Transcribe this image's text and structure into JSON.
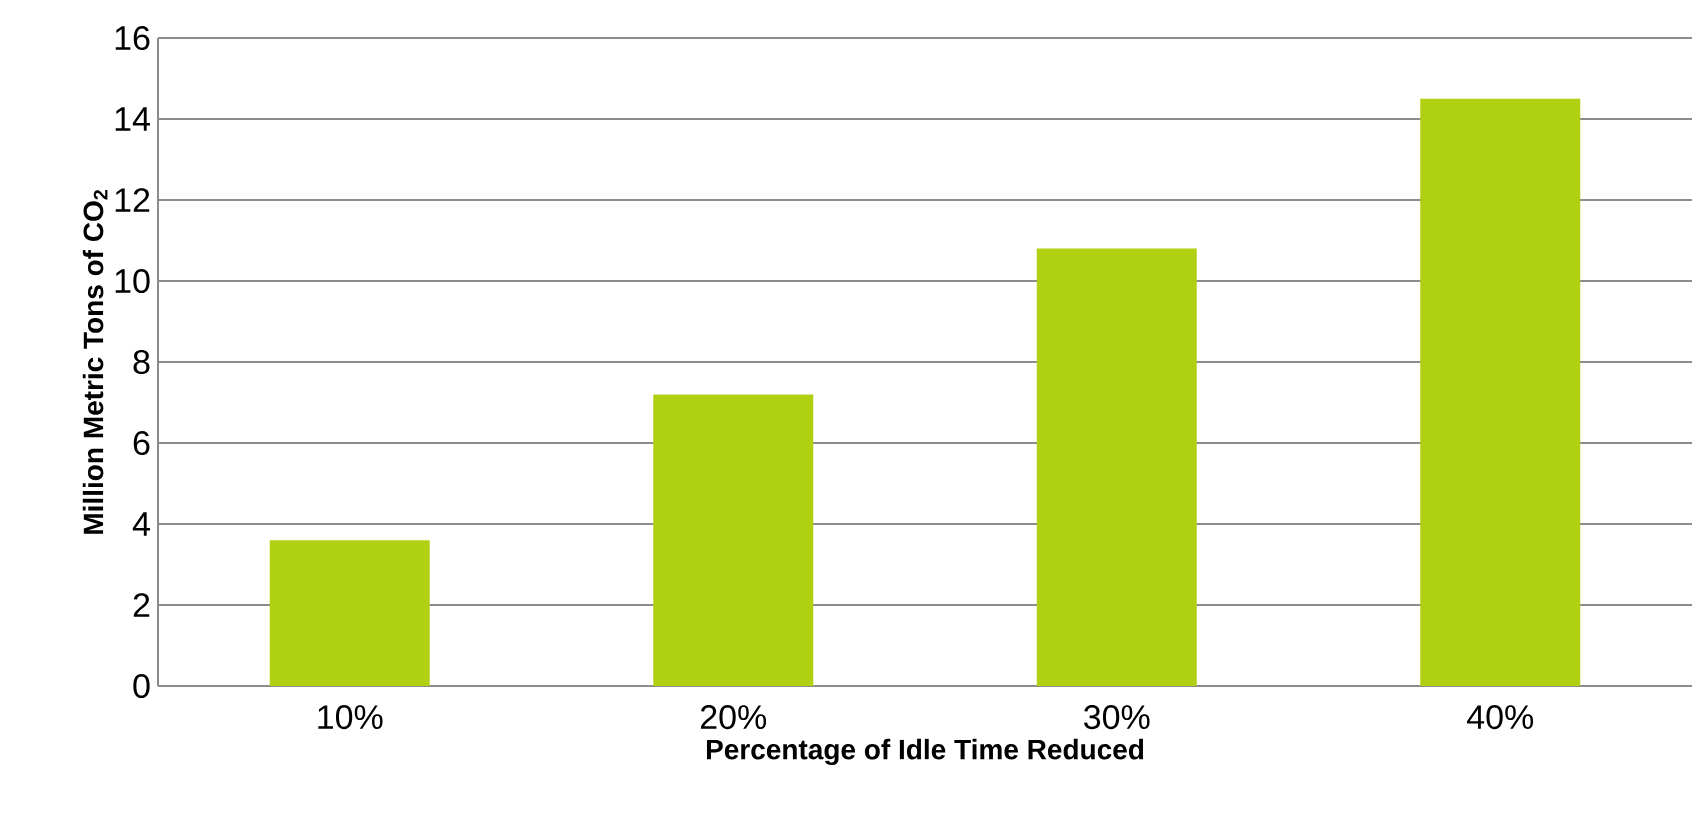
{
  "chart_data": {
    "type": "bar",
    "xlabel": "Percentage of Idle Time Reduced",
    "ylabel": "Million Metric Tons of CO$_{2}$",
    "categories": [
      "10%",
      "20%",
      "30%",
      "40%"
    ],
    "values": [
      3.6,
      7.2,
      10.8,
      14.5
    ],
    "color": "#b0d012",
    "ylim": [
      0,
      16
    ],
    "yticks": [
      0,
      2,
      4,
      6,
      8,
      10,
      12,
      14,
      16
    ],
    "grid": "y"
  }
}
